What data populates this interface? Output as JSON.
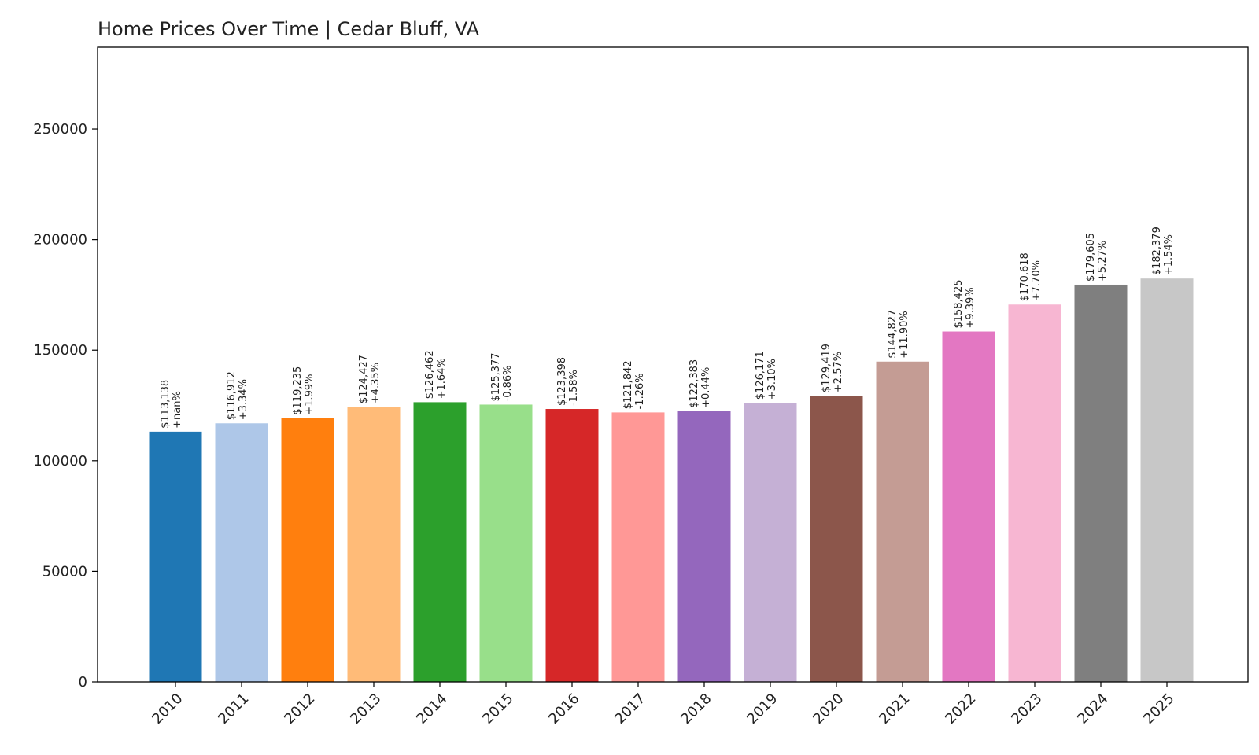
{
  "chart_data": {
    "type": "bar",
    "title": "Home Prices Over Time | Cedar Bluff, VA",
    "xlabel": "",
    "ylabel": "",
    "ylim": [
      0,
      287000
    ],
    "yticks": [
      0,
      50000,
      100000,
      150000,
      200000,
      250000
    ],
    "ytick_labels": [
      "0",
      "50000",
      "100000",
      "150000",
      "200000",
      "250000"
    ],
    "categories": [
      "2010",
      "2011",
      "2012",
      "2013",
      "2014",
      "2015",
      "2016",
      "2017",
      "2018",
      "2019",
      "2020",
      "2021",
      "2022",
      "2023",
      "2024",
      "2025"
    ],
    "values": [
      113138,
      116912,
      119235,
      124427,
      126462,
      125377,
      123398,
      121842,
      122383,
      126171,
      129419,
      144827,
      158425,
      170618,
      179605,
      182379
    ],
    "price_labels": [
      "$113,138",
      "$116,912",
      "$119,235",
      "$124,427",
      "$126,462",
      "$125,377",
      "$123,398",
      "$121,842",
      "$122,383",
      "$126,171",
      "$129,419",
      "$144,827",
      "$158,425",
      "$170,618",
      "$179,605",
      "$182,379"
    ],
    "change_labels": [
      "+nan%",
      "+3.34%",
      "+1.99%",
      "+4.35%",
      "+1.64%",
      "-0.86%",
      "-1.58%",
      "-1.26%",
      "+0.44%",
      "+3.10%",
      "+2.57%",
      "+11.90%",
      "+9.39%",
      "+7.70%",
      "+5.27%",
      "+1.54%"
    ],
    "colors": [
      "#1f77b4",
      "#aec7e8",
      "#ff7f0e",
      "#ffbb78",
      "#2ca02c",
      "#98df8a",
      "#d62728",
      "#ff9896",
      "#9467bd",
      "#c5b0d5",
      "#8c564b",
      "#c49c94",
      "#e377c2",
      "#f7b6d2",
      "#7f7f7f",
      "#c7c7c7"
    ],
    "grid": false,
    "legend": "none"
  }
}
